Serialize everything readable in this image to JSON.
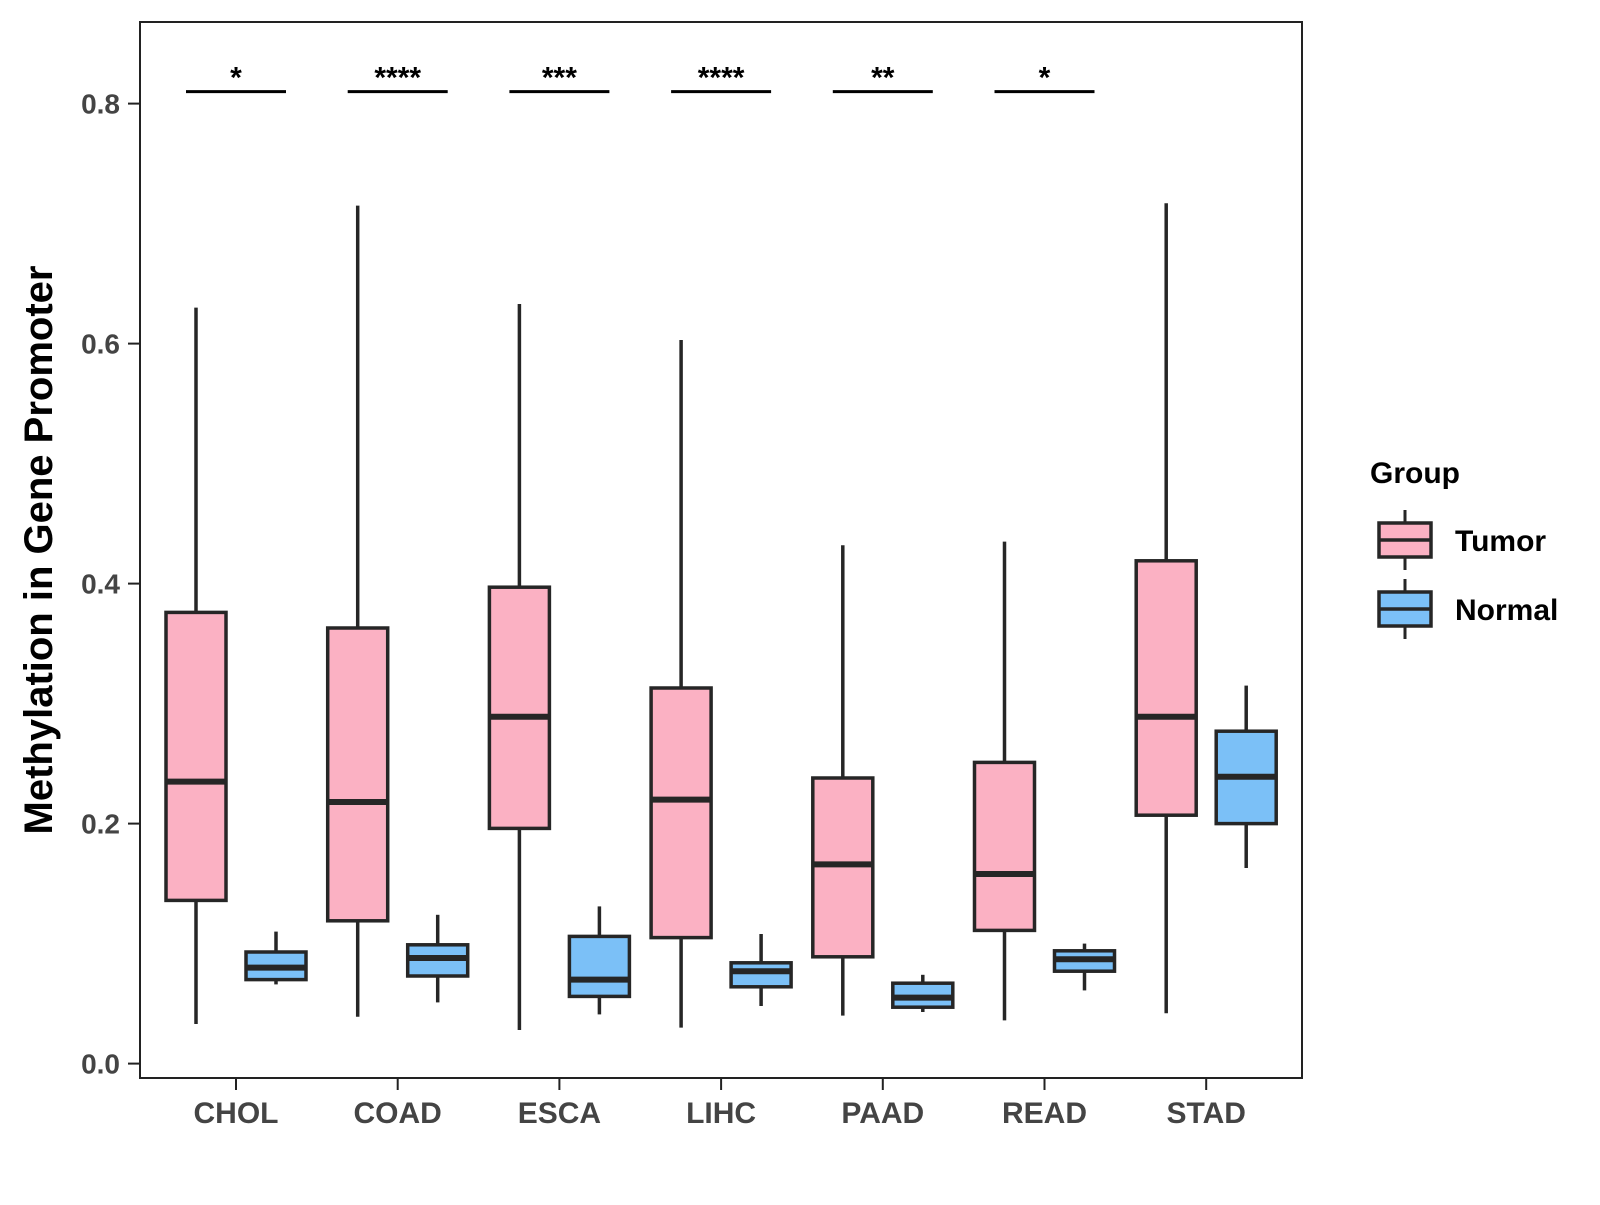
{
  "chart_data": {
    "type": "boxplot",
    "title": "",
    "xlabel": "",
    "ylabel": "Methylation in Gene Promoter",
    "ylim": [
      -0.012,
      0.868
    ],
    "yticks": [
      0.0,
      0.2,
      0.4,
      0.6,
      0.8
    ],
    "ytick_labels": [
      "0.0",
      "0.2",
      "0.4",
      "0.6",
      "0.8"
    ],
    "categories": [
      "CHOL",
      "COAD",
      "ESCA",
      "LIHC",
      "PAAD",
      "READ",
      "STAD"
    ],
    "legend": {
      "title": "Group",
      "position": "right",
      "entries": [
        {
          "name": "Tumor",
          "color": "#FBB1C3"
        },
        {
          "name": "Normal",
          "color": "#7BC0F7"
        }
      ]
    },
    "series": [
      {
        "name": "Tumor",
        "color": "#FBB1C3",
        "boxes": [
          {
            "category": "CHOL",
            "min": 0.033,
            "q1": 0.136,
            "median": 0.235,
            "q3": 0.376,
            "max": 0.63
          },
          {
            "category": "COAD",
            "min": 0.039,
            "q1": 0.119,
            "median": 0.218,
            "q3": 0.363,
            "max": 0.715
          },
          {
            "category": "ESCA",
            "min": 0.028,
            "q1": 0.196,
            "median": 0.289,
            "q3": 0.397,
            "max": 0.633
          },
          {
            "category": "LIHC",
            "min": 0.03,
            "q1": 0.105,
            "median": 0.22,
            "q3": 0.313,
            "max": 0.603
          },
          {
            "category": "PAAD",
            "min": 0.04,
            "q1": 0.089,
            "median": 0.166,
            "q3": 0.238,
            "max": 0.432
          },
          {
            "category": "READ",
            "min": 0.036,
            "q1": 0.111,
            "median": 0.158,
            "q3": 0.251,
            "max": 0.435
          },
          {
            "category": "STAD",
            "min": 0.042,
            "q1": 0.207,
            "median": 0.289,
            "q3": 0.419,
            "max": 0.717
          }
        ]
      },
      {
        "name": "Normal",
        "color": "#7BC0F7",
        "boxes": [
          {
            "category": "CHOL",
            "min": 0.066,
            "q1": 0.07,
            "median": 0.08,
            "q3": 0.093,
            "max": 0.11
          },
          {
            "category": "COAD",
            "min": 0.051,
            "q1": 0.073,
            "median": 0.088,
            "q3": 0.099,
            "max": 0.124
          },
          {
            "category": "ESCA",
            "min": 0.041,
            "q1": 0.056,
            "median": 0.07,
            "q3": 0.106,
            "max": 0.131
          },
          {
            "category": "LIHC",
            "min": 0.048,
            "q1": 0.064,
            "median": 0.077,
            "q3": 0.084,
            "max": 0.108
          },
          {
            "category": "PAAD",
            "min": 0.043,
            "q1": 0.047,
            "median": 0.055,
            "q3": 0.067,
            "max": 0.074
          },
          {
            "category": "READ",
            "min": 0.061,
            "q1": 0.077,
            "median": 0.087,
            "q3": 0.094,
            "max": 0.1
          },
          {
            "category": "STAD",
            "min": 0.163,
            "q1": 0.2,
            "median": 0.239,
            "q3": 0.277,
            "max": 0.315
          }
        ]
      }
    ],
    "annotations": [
      {
        "category": "CHOL",
        "text": "*",
        "y": 0.81
      },
      {
        "category": "COAD",
        "text": "****",
        "y": 0.81
      },
      {
        "category": "ESCA",
        "text": "***",
        "y": 0.81
      },
      {
        "category": "LIHC",
        "text": "****",
        "y": 0.81
      },
      {
        "category": "PAAD",
        "text": "**",
        "y": 0.81
      },
      {
        "category": "READ",
        "text": "*",
        "y": 0.81
      }
    ]
  }
}
